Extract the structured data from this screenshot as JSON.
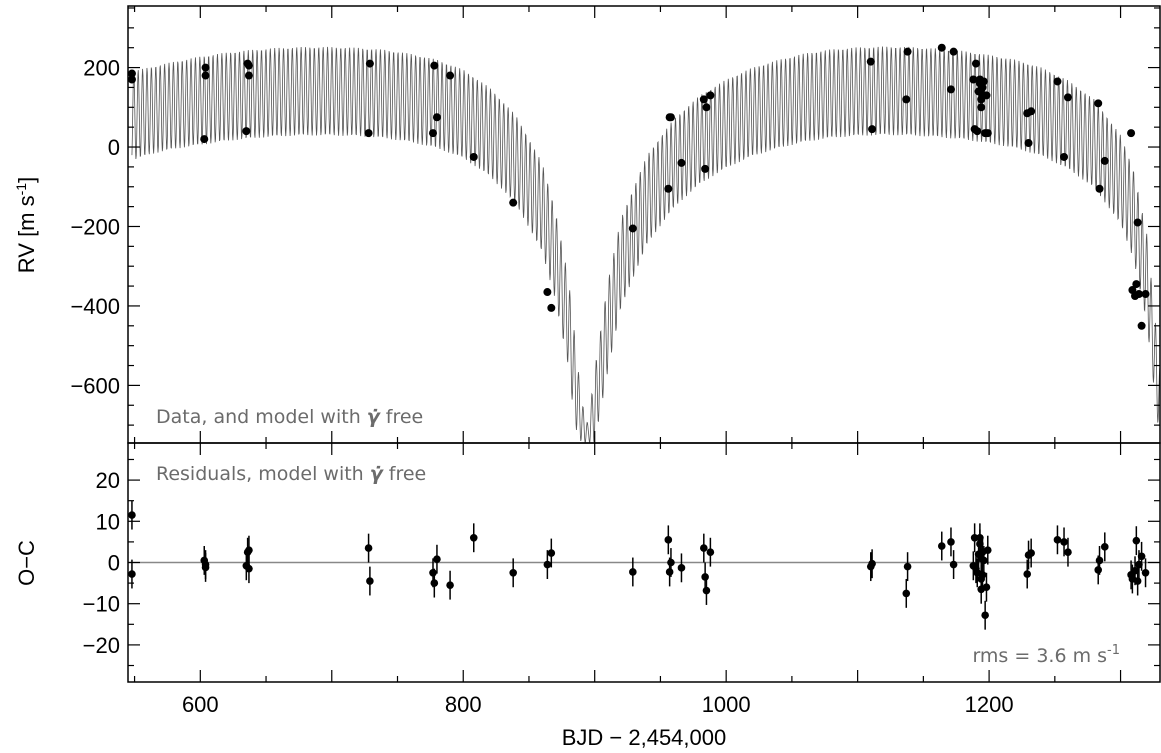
{
  "chart_data": [
    {
      "type": "scatter",
      "panel": "top",
      "ylabel_main": "RV [m s",
      "ylabel_sup": "-1",
      "ylabel_close": "]",
      "annotation_main": "Data, and model with ",
      "annotation_symbol": "γ̇",
      "annotation_tail": " free",
      "xlim": [
        545,
        1330
      ],
      "ylim": [
        -745,
        355
      ],
      "yticks": [
        200,
        0,
        -200,
        -400,
        -600
      ],
      "ytick_labels": [
        "200",
        "0",
        "−200",
        "−400",
        "−600"
      ],
      "grid": false,
      "model": {
        "name": "model",
        "color": "#555555",
        "upper_envelope_x": [
          548,
          560,
          580,
          600,
          620,
          640,
          660,
          680,
          700,
          720,
          740,
          760,
          780,
          800,
          820,
          840,
          860,
          870,
          880,
          885,
          890,
          895,
          900,
          910,
          920,
          940,
          960,
          980,
          1000,
          1020,
          1040,
          1060,
          1080,
          1100,
          1120,
          1140,
          1160,
          1180,
          1200,
          1220,
          1240,
          1260,
          1280,
          1300,
          1310,
          1320,
          1330
        ],
        "upper_envelope_y": [
          190,
          200,
          215,
          228,
          238,
          245,
          250,
          252,
          252,
          250,
          245,
          235,
          220,
          195,
          150,
          80,
          -40,
          -160,
          -330,
          -480,
          -640,
          -700,
          -560,
          -340,
          -180,
          -20,
          70,
          130,
          170,
          200,
          220,
          236,
          246,
          251,
          253,
          252,
          248,
          242,
          232,
          220,
          200,
          168,
          120,
          30,
          -60,
          -220,
          -560
        ],
        "lower_envelope_y": [
          -35,
          -20,
          -5,
          5,
          15,
          22,
          27,
          29,
          29,
          27,
          22,
          12,
          -3,
          -28,
          -73,
          -143,
          -263,
          -383,
          -553,
          -703,
          -745,
          -745,
          -745,
          -563,
          -403,
          -243,
          -153,
          -93,
          -53,
          -23,
          -3,
          13,
          23,
          28,
          30,
          29,
          25,
          19,
          9,
          -3,
          -23,
          -55,
          -103,
          -193,
          -283,
          -443,
          -745
        ]
      },
      "series": [
        {
          "name": "data",
          "color": "#000000",
          "x": [
            548,
            548,
            603,
            604,
            604,
            635,
            636,
            637,
            637,
            728,
            729,
            777,
            778,
            780,
            790,
            808,
            838,
            864,
            867,
            929,
            956,
            957,
            958,
            966,
            983,
            984,
            985,
            988,
            1110,
            1111,
            1137,
            1138,
            1164,
            1171,
            1173,
            1188,
            1189,
            1190,
            1191,
            1192,
            1193,
            1193,
            1194,
            1194,
            1194,
            1195,
            1195,
            1196,
            1197,
            1198,
            1199,
            1229,
            1230,
            1232,
            1252,
            1257,
            1260,
            1283,
            1284,
            1288,
            1308,
            1309,
            1311,
            1312,
            1313,
            1314,
            1316,
            1319
          ],
          "y": [
            185,
            170,
            20,
            200,
            180,
            40,
            210,
            180,
            205,
            35,
            210,
            35,
            205,
            75,
            180,
            -25,
            -140,
            -365,
            -405,
            -205,
            -105,
            75,
            75,
            -40,
            120,
            -55,
            100,
            130,
            215,
            45,
            120,
            240,
            250,
            145,
            240,
            170,
            45,
            210,
            40,
            140,
            170,
            160,
            120,
            100,
            145,
            150,
            130,
            165,
            35,
            130,
            35,
            85,
            10,
            90,
            165,
            -25,
            125,
            110,
            -105,
            -35,
            35,
            -360,
            -375,
            -345,
            -190,
            -370,
            -450,
            -370
          ]
        }
      ]
    },
    {
      "type": "scatter",
      "panel": "bottom",
      "xlabel": "BJD − 2,454,000",
      "ylabel": "O−C",
      "annotation_main": "Residuals, model with ",
      "annotation_symbol": "γ̇",
      "annotation_tail": " free",
      "rms_main": "rms = 3.6 m s",
      "rms_sup": "-1",
      "xlim": [
        545,
        1330
      ],
      "ylim": [
        -29,
        29
      ],
      "xticks": [
        600,
        800,
        1000,
        1200
      ],
      "xtick_labels": [
        "600",
        "800",
        "1000",
        "1200"
      ],
      "yticks": [
        20,
        10,
        0,
        -10,
        -20
      ],
      "ytick_labels": [
        "20",
        "10",
        "0",
        "−10",
        "−20"
      ],
      "zero_line": 0,
      "grid": false,
      "series": [
        {
          "name": "residuals",
          "color": "#000000",
          "x": [
            548,
            548,
            603,
            604,
            604,
            635,
            636,
            637,
            637,
            728,
            729,
            777,
            778,
            780,
            790,
            808,
            838,
            864,
            867,
            929,
            956,
            957,
            958,
            966,
            983,
            984,
            985,
            988,
            1110,
            1111,
            1137,
            1138,
            1164,
            1171,
            1173,
            1188,
            1189,
            1190,
            1191,
            1192,
            1193,
            1193,
            1194,
            1194,
            1194,
            1195,
            1195,
            1196,
            1197,
            1198,
            1199,
            1229,
            1230,
            1232,
            1252,
            1257,
            1260,
            1283,
            1284,
            1288,
            1308,
            1309,
            1311,
            1312,
            1313,
            1314,
            1316,
            1319
          ],
          "y": [
            11.5,
            -2.8,
            0.5,
            -0.5,
            -1.2,
            -0.8,
            2.5,
            3.0,
            -1.5,
            3.5,
            -4.5,
            -2.5,
            -5.0,
            0.8,
            -5.5,
            6.0,
            -2.5,
            -0.5,
            2.3,
            -2.3,
            5.5,
            -2.3,
            0,
            -1.3,
            3.5,
            -3.5,
            -6.8,
            2.5,
            -1.0,
            -0.3,
            -7.5,
            -1.0,
            4.0,
            5.0,
            -0.5,
            -0.8,
            6.0,
            -1.5,
            -2.5,
            2.0,
            4.5,
            6.0,
            -4.0,
            1.0,
            -6.5,
            -3.0,
            2.5,
            0.5,
            -12.8,
            -6.0,
            3.0,
            -2.8,
            1.8,
            2.3,
            5.5,
            5.0,
            2.5,
            -1.8,
            0.5,
            3.8,
            -3.0,
            -4.0,
            -2.0,
            5.3,
            -4.5,
            -0.5,
            1.5,
            -2.5
          ],
          "err": [
            3.5,
            3.5,
            3.5,
            3.5,
            3.5,
            3.5,
            3.5,
            3.5,
            3.5,
            3.5,
            3.5,
            3.5,
            3.5,
            3.5,
            3.5,
            3.5,
            3.5,
            3.5,
            3.5,
            3.5,
            3.5,
            3.5,
            3.5,
            3.5,
            3.5,
            3.5,
            3.5,
            3.5,
            3.5,
            3.5,
            3.5,
            3.5,
            3.5,
            3.5,
            3.5,
            3.5,
            3.5,
            3.5,
            3.5,
            3.5,
            3.5,
            3.5,
            3.5,
            3.5,
            3.5,
            3.5,
            3.5,
            3.5,
            3.5,
            3.5,
            3.5,
            3.5,
            3.5,
            3.5,
            3.5,
            3.5,
            3.5,
            3.5,
            3.5,
            3.5,
            3.5,
            3.5,
            3.5,
            3.5,
            3.5,
            3.5,
            3.5,
            3.5
          ]
        }
      ]
    }
  ]
}
